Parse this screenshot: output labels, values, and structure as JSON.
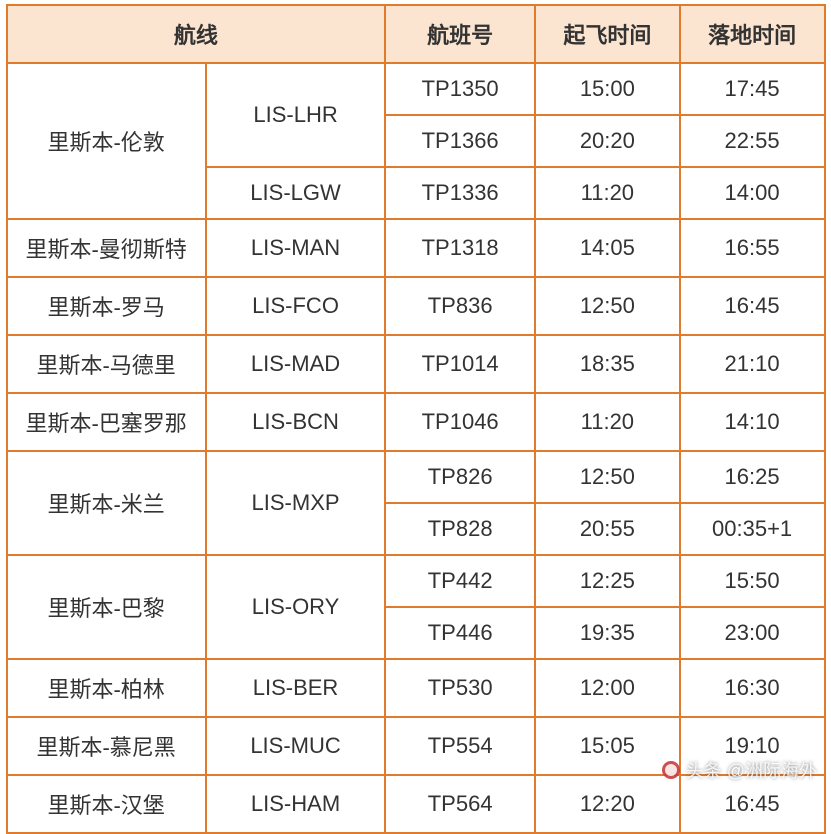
{
  "table": {
    "border_color": "#e07b2e",
    "header_bg": "#fce5d0",
    "text_color": "#333333",
    "font_size": 22,
    "header_font_size": 22,
    "columns": [
      {
        "label": "航线",
        "span": 2
      },
      {
        "label": "航班号",
        "span": 1
      },
      {
        "label": "起飞时间",
        "span": 1
      },
      {
        "label": "落地时间",
        "span": 1
      }
    ],
    "rows": [
      {
        "route": "里斯本-伦敦",
        "route_rowspan": 3,
        "code": "LIS-LHR",
        "code_rowspan": 2,
        "flight": "TP1350",
        "dep": "15:00",
        "arr": "17:45"
      },
      {
        "flight": "TP1366",
        "dep": "20:20",
        "arr": "22:55"
      },
      {
        "code": "LIS-LGW",
        "code_rowspan": 1,
        "flight": "TP1336",
        "dep": "11:20",
        "arr": "14:00"
      },
      {
        "route": "里斯本-曼彻斯特",
        "route_rowspan": 1,
        "code": "LIS-MAN",
        "code_rowspan": 1,
        "flight": "TP1318",
        "dep": "14:05",
        "arr": "16:55"
      },
      {
        "route": "里斯本-罗马",
        "route_rowspan": 1,
        "code": "LIS-FCO",
        "code_rowspan": 1,
        "flight": "TP836",
        "dep": "12:50",
        "arr": "16:45"
      },
      {
        "route": "里斯本-马德里",
        "route_rowspan": 1,
        "code": "LIS-MAD",
        "code_rowspan": 1,
        "flight": "TP1014",
        "dep": "18:35",
        "arr": "21:10"
      },
      {
        "route": "里斯本-巴塞罗那",
        "route_rowspan": 1,
        "code": "LIS-BCN",
        "code_rowspan": 1,
        "flight": "TP1046",
        "dep": "11:20",
        "arr": "14:10"
      },
      {
        "route": "里斯本-米兰",
        "route_rowspan": 2,
        "code": "LIS-MXP",
        "code_rowspan": 2,
        "flight": "TP826",
        "dep": "12:50",
        "arr": "16:25"
      },
      {
        "flight": "TP828",
        "dep": "20:55",
        "arr": "00:35+1"
      },
      {
        "route": "里斯本-巴黎",
        "route_rowspan": 2,
        "code": "LIS-ORY",
        "code_rowspan": 2,
        "flight": "TP442",
        "dep": "12:25",
        "arr": "15:50"
      },
      {
        "flight": "TP446",
        "dep": "19:35",
        "arr": "23:00"
      },
      {
        "route": "里斯本-柏林",
        "route_rowspan": 1,
        "code": "LIS-BER",
        "code_rowspan": 1,
        "flight": "TP530",
        "dep": "12:00",
        "arr": "16:30"
      },
      {
        "route": "里斯本-慕尼黑",
        "route_rowspan": 1,
        "code": "LIS-MUC",
        "code_rowspan": 1,
        "flight": "TP554",
        "dep": "15:05",
        "arr": "19:10"
      },
      {
        "route": "里斯本-汉堡",
        "route_rowspan": 1,
        "code": "LIS-HAM",
        "code_rowspan": 1,
        "flight": "TP564",
        "dep": "12:20",
        "arr": "16:45"
      }
    ]
  },
  "watermark": {
    "text": "头条 @洲际海外"
  }
}
